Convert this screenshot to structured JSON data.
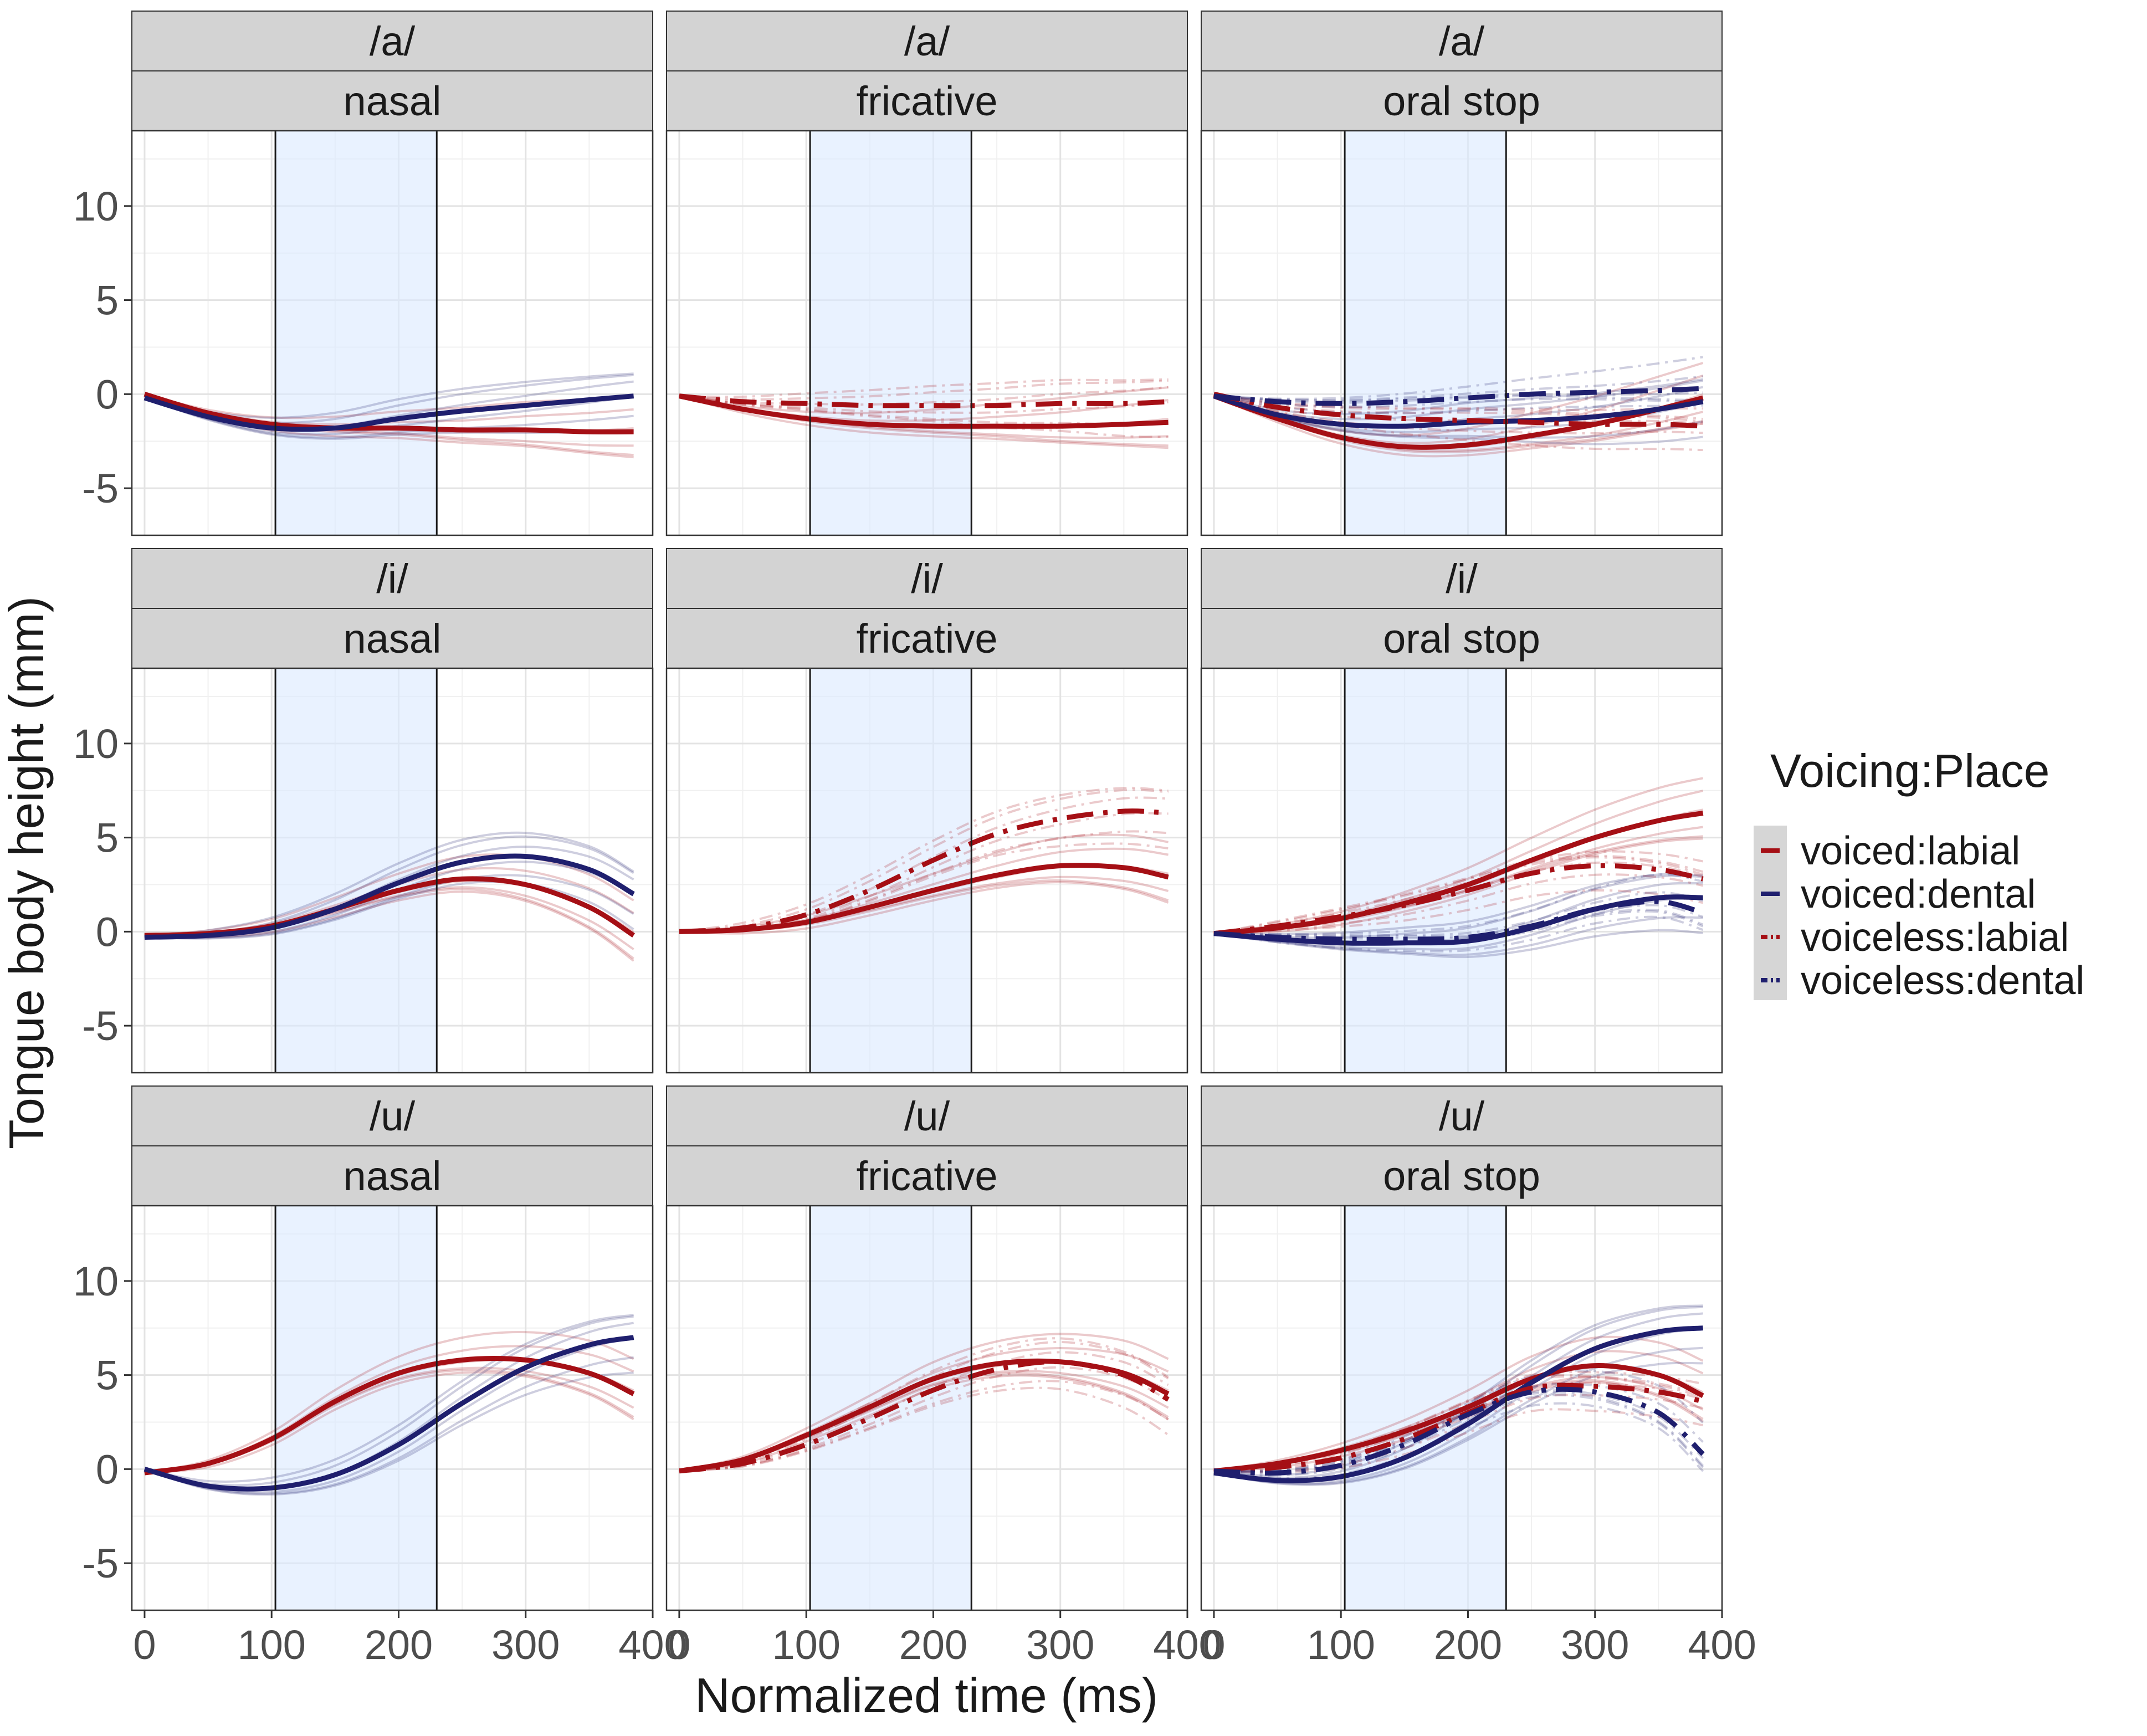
{
  "chart_data": {
    "type": "line",
    "xlabel": "Normalized time (ms)",
    "ylabel": "Tongue body height (mm)",
    "xlim": [
      -10,
      400
    ],
    "ylim": [
      -7.5,
      14
    ],
    "x_ticks": [
      "0",
      "100",
      "200",
      "300",
      "400"
    ],
    "y_ticks": [
      "-5",
      "0",
      "5",
      "10"
    ],
    "shaded_interval": [
      103,
      230
    ],
    "grid": true,
    "legend": {
      "title": "Voicing:Place",
      "placement": "right",
      "entries": [
        {
          "label": "voiced:labial",
          "color": "#a50f15",
          "linetype": "solid"
        },
        {
          "label": "voiced:dental",
          "color": "#1f1f6e",
          "linetype": "solid"
        },
        {
          "label": "voiceless:labial",
          "color": "#a50f15",
          "linetype": "dotdash"
        },
        {
          "label": "voiceless:dental",
          "color": "#1f1f6e",
          "linetype": "dotdash"
        }
      ]
    },
    "x": [
      0,
      50,
      100,
      150,
      200,
      250,
      300,
      350,
      385
    ],
    "panels": [
      {
        "vowel": "/a/",
        "manner": "nasal",
        "series": [
          {
            "key": "voiced:labial",
            "values": [
              0,
              -1.0,
              -1.6,
              -1.8,
              -1.8,
              -1.9,
              -1.9,
              -2.0,
              -2.0
            ]
          },
          {
            "key": "voiced:dental",
            "values": [
              -0.2,
              -1.2,
              -1.8,
              -1.8,
              -1.3,
              -0.9,
              -0.6,
              -0.3,
              -0.1
            ]
          }
        ]
      },
      {
        "vowel": "/a/",
        "manner": "fricative",
        "series": [
          {
            "key": "voiced:labial",
            "values": [
              -0.1,
              -0.8,
              -1.3,
              -1.6,
              -1.7,
              -1.7,
              -1.7,
              -1.6,
              -1.5
            ]
          },
          {
            "key": "voiceless:labial",
            "values": [
              -0.1,
              -0.4,
              -0.5,
              -0.6,
              -0.6,
              -0.6,
              -0.5,
              -0.5,
              -0.4
            ]
          }
        ]
      },
      {
        "vowel": "/a/",
        "manner": "oral stop",
        "series": [
          {
            "key": "voiced:labial",
            "values": [
              -0.1,
              -1.3,
              -2.3,
              -2.8,
              -2.7,
              -2.2,
              -1.6,
              -0.8,
              -0.2
            ]
          },
          {
            "key": "voiced:dental",
            "values": [
              -0.1,
              -1.1,
              -1.6,
              -1.7,
              -1.5,
              -1.4,
              -1.2,
              -0.8,
              -0.4
            ]
          },
          {
            "key": "voiceless:labial",
            "values": [
              0,
              -0.7,
              -1.1,
              -1.3,
              -1.4,
              -1.5,
              -1.6,
              -1.6,
              -1.7
            ]
          },
          {
            "key": "voiceless:dental",
            "values": [
              -0.1,
              -0.4,
              -0.5,
              -0.4,
              -0.2,
              0,
              0.1,
              0.2,
              0.3
            ]
          }
        ]
      },
      {
        "vowel": "/i/",
        "manner": "nasal",
        "series": [
          {
            "key": "voiced:labial",
            "values": [
              -0.2,
              -0.1,
              0.3,
              1.2,
              2.2,
              2.8,
              2.5,
              1.3,
              -0.2
            ]
          },
          {
            "key": "voiced:dental",
            "values": [
              -0.3,
              -0.2,
              0.2,
              1.2,
              2.6,
              3.7,
              4.0,
              3.3,
              2.0
            ]
          }
        ]
      },
      {
        "vowel": "/i/",
        "manner": "fricative",
        "series": [
          {
            "key": "voiced:labial",
            "values": [
              0,
              0.1,
              0.5,
              1.3,
              2.2,
              3.0,
              3.5,
              3.4,
              2.9
            ]
          },
          {
            "key": "voiceless:labial",
            "values": [
              0,
              0.2,
              0.9,
              2.2,
              3.8,
              5.2,
              6.0,
              6.4,
              6.3
            ]
          }
        ]
      },
      {
        "vowel": "/i/",
        "manner": "oral stop",
        "series": [
          {
            "key": "voiced:labial",
            "values": [
              -0.1,
              0.2,
              0.7,
              1.5,
              2.5,
              3.8,
              5.0,
              5.9,
              6.3
            ]
          },
          {
            "key": "voiced:dental",
            "values": [
              -0.1,
              -0.4,
              -0.6,
              -0.6,
              -0.5,
              0.2,
              1.2,
              1.8,
              1.8
            ]
          },
          {
            "key": "voiceless:labial",
            "values": [
              -0.1,
              0.3,
              0.8,
              1.4,
              2.2,
              3.1,
              3.5,
              3.3,
              2.8
            ]
          },
          {
            "key": "voiceless:dental",
            "values": [
              -0.1,
              -0.3,
              -0.4,
              -0.4,
              -0.3,
              0.3,
              1.2,
              1.6,
              1.0
            ]
          }
        ]
      },
      {
        "vowel": "/u/",
        "manner": "nasal",
        "series": [
          {
            "key": "voiced:labial",
            "values": [
              -0.2,
              0.3,
              1.6,
              3.6,
              5.1,
              5.8,
              5.8,
              5.1,
              4.0
            ]
          },
          {
            "key": "voiced:dental",
            "values": [
              0,
              -0.9,
              -1.0,
              -0.3,
              1.3,
              3.5,
              5.4,
              6.6,
              7.0
            ]
          }
        ]
      },
      {
        "vowel": "/u/",
        "manner": "fricative",
        "series": [
          {
            "key": "voiced:labial",
            "values": [
              -0.1,
              0.5,
              1.8,
              3.3,
              4.8,
              5.6,
              5.7,
              5.1,
              4.0
            ]
          },
          {
            "key": "voiceless:labial",
            "values": [
              -0.1,
              0.3,
              1.3,
              2.7,
              4.2,
              5.3,
              5.7,
              5.0,
              3.7
            ]
          }
        ]
      },
      {
        "vowel": "/u/",
        "manner": "oral stop",
        "series": [
          {
            "key": "voiced:labial",
            "values": [
              -0.1,
              0.3,
              1.0,
              2.0,
              3.3,
              4.8,
              5.5,
              5.0,
              3.9
            ]
          },
          {
            "key": "voiced:dental",
            "values": [
              -0.2,
              -0.6,
              -0.4,
              0.6,
              2.4,
              4.6,
              6.4,
              7.3,
              7.5
            ]
          },
          {
            "key": "voiceless:labial",
            "values": [
              -0.1,
              0.1,
              0.6,
              1.6,
              3.0,
              4.3,
              4.4,
              4.1,
              3.6
            ]
          },
          {
            "key": "voiceless:dental",
            "values": [
              -0.1,
              -0.2,
              0.2,
              1.3,
              2.9,
              4.1,
              4.1,
              3.0,
              0.8
            ]
          }
        ]
      }
    ]
  }
}
